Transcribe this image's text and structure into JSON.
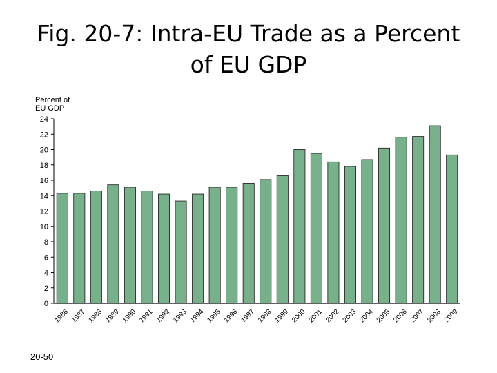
{
  "title": {
    "line1": "Fig. 20-7: Intra-EU Trade as a Percent",
    "line2": "of EU GDP"
  },
  "page_number": "20-50",
  "colors": {
    "bar_fill": "#78b08c",
    "bar_stroke": "#1a1a1a",
    "axis": "#000000",
    "text": "#000000"
  },
  "chart_data": {
    "type": "bar",
    "title": "",
    "ylabel": [
      "Percent of",
      "EU GDP"
    ],
    "xlabel": "",
    "ylim": [
      0,
      24
    ],
    "yticks": [
      0,
      2,
      4,
      6,
      8,
      10,
      12,
      14,
      16,
      18,
      20,
      22,
      24
    ],
    "grid": false,
    "categories": [
      "1986",
      "1987",
      "1988",
      "1989",
      "1990",
      "1991",
      "1992",
      "1993",
      "1994",
      "1995",
      "1996",
      "1997",
      "1998",
      "1999",
      "2000",
      "2001",
      "2002",
      "2003",
      "2004",
      "2005",
      "2006",
      "2007",
      "2008",
      "2009"
    ],
    "values": [
      14.3,
      14.3,
      14.6,
      15.4,
      15.1,
      14.6,
      14.2,
      13.3,
      14.2,
      15.1,
      15.1,
      15.6,
      16.1,
      16.6,
      20.0,
      19.5,
      18.4,
      17.8,
      18.7,
      20.2,
      21.6,
      21.7,
      23.1,
      19.3
    ]
  }
}
